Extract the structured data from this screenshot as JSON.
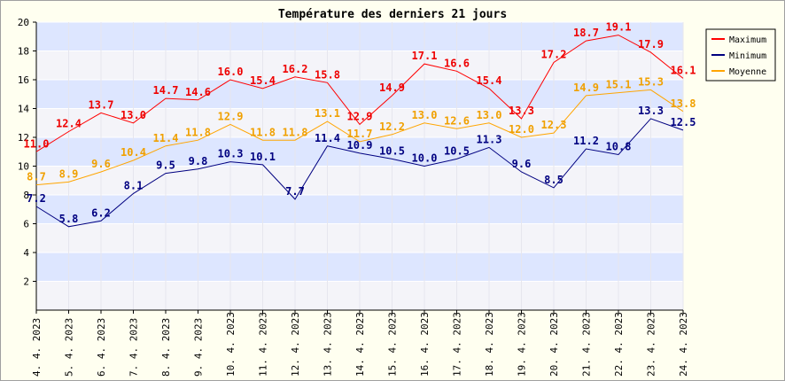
{
  "chart_data": {
    "type": "line",
    "title": "Température des derniers 21 jours",
    "categories": [
      "4. 4. 2023",
      "5. 4. 2023",
      "6. 4. 2023",
      "7. 4. 2023",
      "8. 4. 2023",
      "9. 4. 2023",
      "10. 4. 2023",
      "11. 4. 2023",
      "12. 4. 2023",
      "13. 4. 2023",
      "14. 4. 2023",
      "15. 4. 2023",
      "16. 4. 2023",
      "17. 4. 2023",
      "18. 4. 2023",
      "19. 4. 2023",
      "20. 4. 2023",
      "21. 4. 2023",
      "22. 4. 2023",
      "23. 4. 2023",
      "24. 4. 2023"
    ],
    "series": [
      {
        "name": "Maximum",
        "color": "#ff0000",
        "label_color": "#ee0000",
        "values": [
          11.0,
          12.4,
          13.7,
          13.0,
          14.7,
          14.6,
          16.0,
          15.4,
          16.2,
          15.8,
          12.9,
          14.9,
          17.1,
          16.6,
          15.4,
          13.3,
          17.2,
          18.7,
          19.1,
          17.9,
          16.1
        ],
        "labels": [
          "11.0",
          "12.4",
          "13.7",
          "13.0",
          "14.7",
          "14.6",
          "16.0",
          "15.4",
          "16.2",
          "15.8",
          "12.9",
          "14.9",
          "17.1",
          "16.6",
          "15.4",
          "13.3",
          "17.2",
          "18.7",
          "19.1",
          "17.9",
          "16.1"
        ]
      },
      {
        "name": "Minimum",
        "color": "#000080",
        "label_color": "#000080",
        "values": [
          7.2,
          5.8,
          6.2,
          8.1,
          9.5,
          9.8,
          10.3,
          10.1,
          7.7,
          11.4,
          10.9,
          10.5,
          10.0,
          10.5,
          11.3,
          9.6,
          8.5,
          11.2,
          10.8,
          13.3,
          12.5
        ],
        "labels": [
          "7.2",
          "5.8",
          "6.2",
          "8.1",
          "9.5",
          "9.8",
          "10.3",
          "10.1",
          "7.7",
          "11.4",
          "10.9",
          "10.5",
          "10.0",
          "10.5",
          "11.3",
          "9.6",
          "8.5",
          "11.2",
          "10.8",
          "13.3",
          "12.5"
        ]
      },
      {
        "name": "Moyenne",
        "color": "#ffa500",
        "label_color": "#f0a000",
        "values": [
          8.7,
          8.9,
          9.6,
          10.4,
          11.4,
          11.8,
          12.9,
          11.8,
          11.8,
          13.1,
          11.7,
          12.2,
          13.0,
          12.6,
          13.0,
          12.0,
          12.3,
          14.9,
          15.1,
          15.3,
          13.8
        ],
        "labels": [
          "8.7",
          "8.9",
          "9.6",
          "10.4",
          "11.4",
          "11.8",
          "12.9",
          "11.8",
          "11.8",
          "13.1",
          "11.7",
          "12.2",
          "13.0",
          "12.6",
          "13.0",
          "12.0",
          "12.3",
          "14.9",
          "15.1",
          "15.3",
          "13.8"
        ]
      }
    ],
    "ylim": [
      0,
      20
    ],
    "yticks": [
      "2",
      "4",
      "6",
      "8",
      "10",
      "12",
      "14",
      "16",
      "18",
      "20"
    ],
    "ytick_values": [
      2,
      4,
      6,
      8,
      10,
      12,
      14,
      16,
      18,
      20
    ],
    "grid": true,
    "band_colors": [
      "#dde6ff",
      "#f4f4f9"
    ],
    "legend_position": "top-right",
    "xlabel": "",
    "ylabel": ""
  }
}
